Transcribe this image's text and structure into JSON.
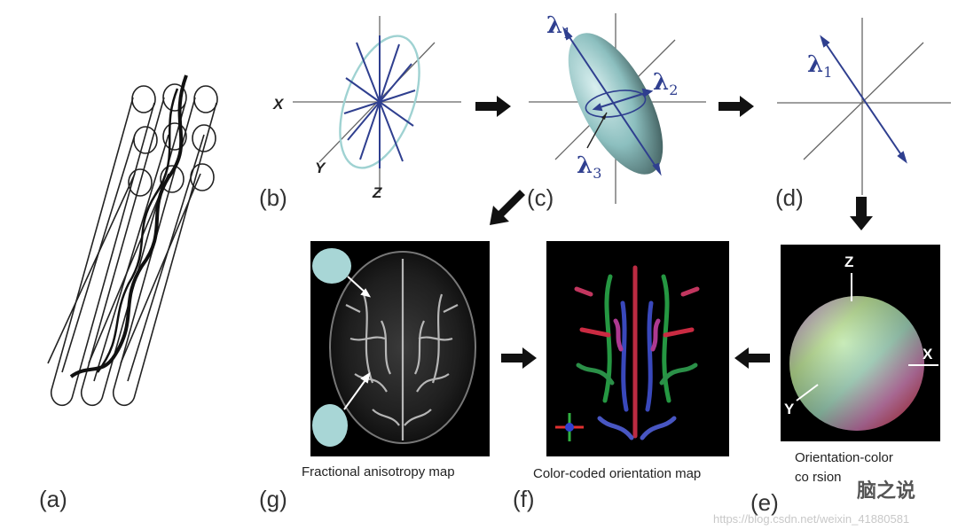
{
  "panels": {
    "a": "(a)",
    "b": "(b)",
    "c": "(c)",
    "d": "(d)",
    "e": "(e)",
    "f": "(f)",
    "g": "(g)"
  },
  "axes_b": {
    "x": "X",
    "y": "Y",
    "z": "Z"
  },
  "lambdas": {
    "c1_sym": "λ",
    "c1_sub": "1",
    "c2_sym": "λ",
    "c2_sub": "2",
    "c3_sym": "λ",
    "c3_sub": "3",
    "d1_sym": "λ",
    "d1_sub": "1"
  },
  "sphere_axes": {
    "z": "Z",
    "x": "X",
    "y": "Y"
  },
  "captions": {
    "fa_map": "Fractional anisotropy map",
    "color_map": "Color-coded  orientation map",
    "orient_line1": "Orientation-color",
    "orient_line2": "co      rsion"
  },
  "watermark": {
    "url": "https://blog.csdn.net/weixin_41880581",
    "logo": "脑之说"
  },
  "colors": {
    "arrow": "#111111",
    "tensor_blue": "#2f3f8f",
    "ellipsoid": "#8fc4c4"
  }
}
